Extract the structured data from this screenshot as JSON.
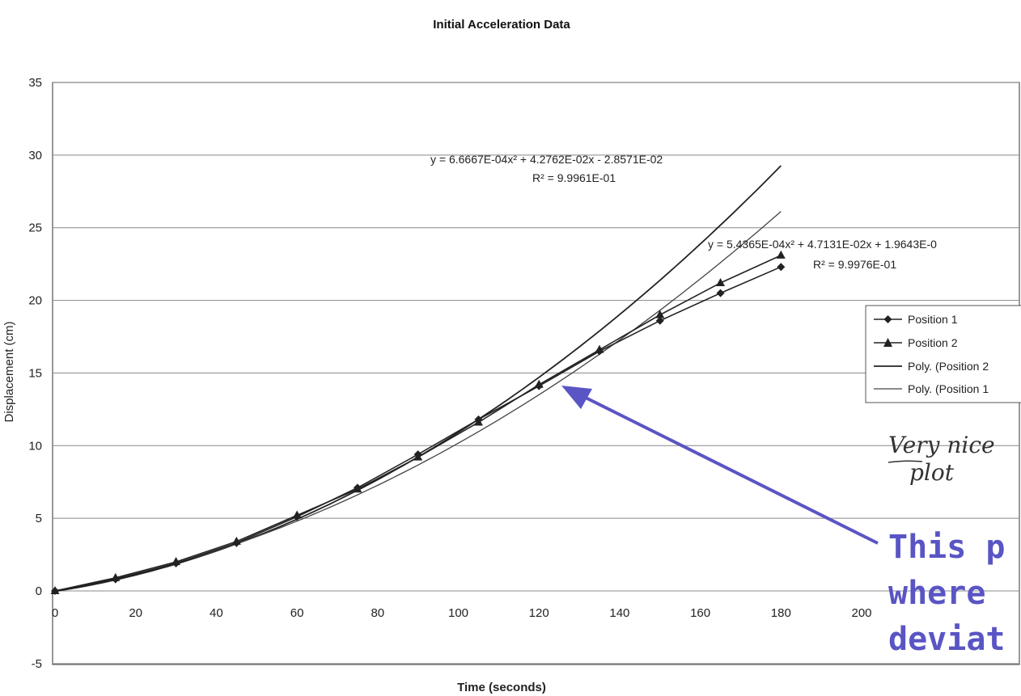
{
  "chart_data": {
    "type": "line",
    "title": "Initial Acceleration Data",
    "xlabel": "Time (seconds)",
    "ylabel": "Displacement (cm)",
    "xlim": [
      0,
      200
    ],
    "ylim": [
      -5,
      35
    ],
    "x_ticks": [
      "0",
      "20",
      "40",
      "60",
      "80",
      "100",
      "120",
      "140",
      "160",
      "180",
      "200"
    ],
    "y_ticks": [
      "-5",
      "0",
      "5",
      "10",
      "15",
      "20",
      "25",
      "30",
      "35"
    ],
    "grid": "horizontal",
    "legend_position": "right",
    "series": [
      {
        "name": "Position 1",
        "marker": "diamond",
        "x": [
          0,
          15,
          30,
          45,
          60,
          75,
          90,
          105,
          120,
          135,
          150,
          165,
          180
        ],
        "y": [
          0,
          0.8,
          1.9,
          3.3,
          5.1,
          7.1,
          9.4,
          11.8,
          14.1,
          16.5,
          18.6,
          20.5,
          22.3
        ]
      },
      {
        "name": "Position 2",
        "marker": "triangle",
        "x": [
          0,
          15,
          30,
          45,
          60,
          75,
          90,
          105,
          120,
          135,
          150,
          165,
          180
        ],
        "y": [
          0,
          0.9,
          2.0,
          3.4,
          5.2,
          7.0,
          9.2,
          11.6,
          14.2,
          16.6,
          19.0,
          21.2,
          23.1
        ]
      }
    ],
    "trendlines": [
      {
        "name": "Poly. (Position 2",
        "a": 0.00066667,
        "b": 0.042762,
        "c": -0.028571,
        "equation": "y = 6.6667E-04x² + 4.2762E-02x - 2.8571E-02",
        "r2": "R² = 9.9961E-01"
      },
      {
        "name": "Poly. (Position 1",
        "a": 0.00054365,
        "b": 0.047131,
        "c": 0.019643,
        "equation": "y = 5.4365E-04x² + 4.7131E-02x + 1.9643E-0",
        "r2": "R² = 9.9976E-01"
      }
    ]
  },
  "annotations": {
    "handwritten_line1": "Very nice",
    "handwritten_line2": "plot",
    "callout_line1": "This p",
    "callout_line2": "where",
    "callout_line3": "deviat",
    "callout_color": "#5a55c4"
  }
}
